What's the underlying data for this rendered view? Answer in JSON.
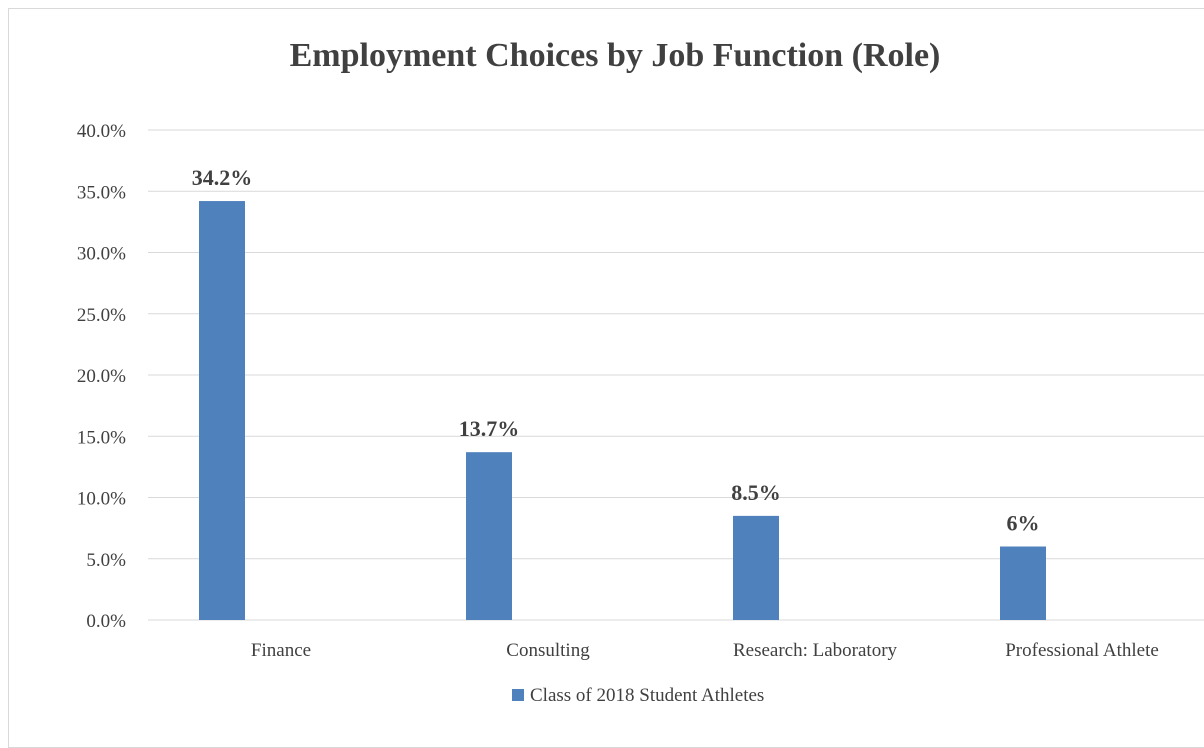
{
  "chart_data": {
    "type": "bar",
    "title": "Employment Choices by Job Function (Role)",
    "categories": [
      "Finance",
      "Consulting",
      "Research: Laboratory",
      "Professional Athlete"
    ],
    "series": [
      {
        "name": "Class of 2018 Student Athletes",
        "values": [
          34.2,
          13.7,
          8.5,
          6
        ],
        "labels": [
          "34.2%",
          "13.7%",
          "8.5%",
          "6%"
        ],
        "color": "#4f81bd"
      }
    ],
    "ylim": [
      0,
      40
    ],
    "yticks": [
      0,
      5,
      10,
      15,
      20,
      25,
      30,
      35,
      40
    ],
    "ytick_labels": [
      "0.0%",
      "5.0%",
      "10.0%",
      "15.0%",
      "20.0%",
      "25.0%",
      "30.0%",
      "35.0%",
      "40.0%"
    ],
    "grid": true,
    "legend_position": "bottom"
  }
}
